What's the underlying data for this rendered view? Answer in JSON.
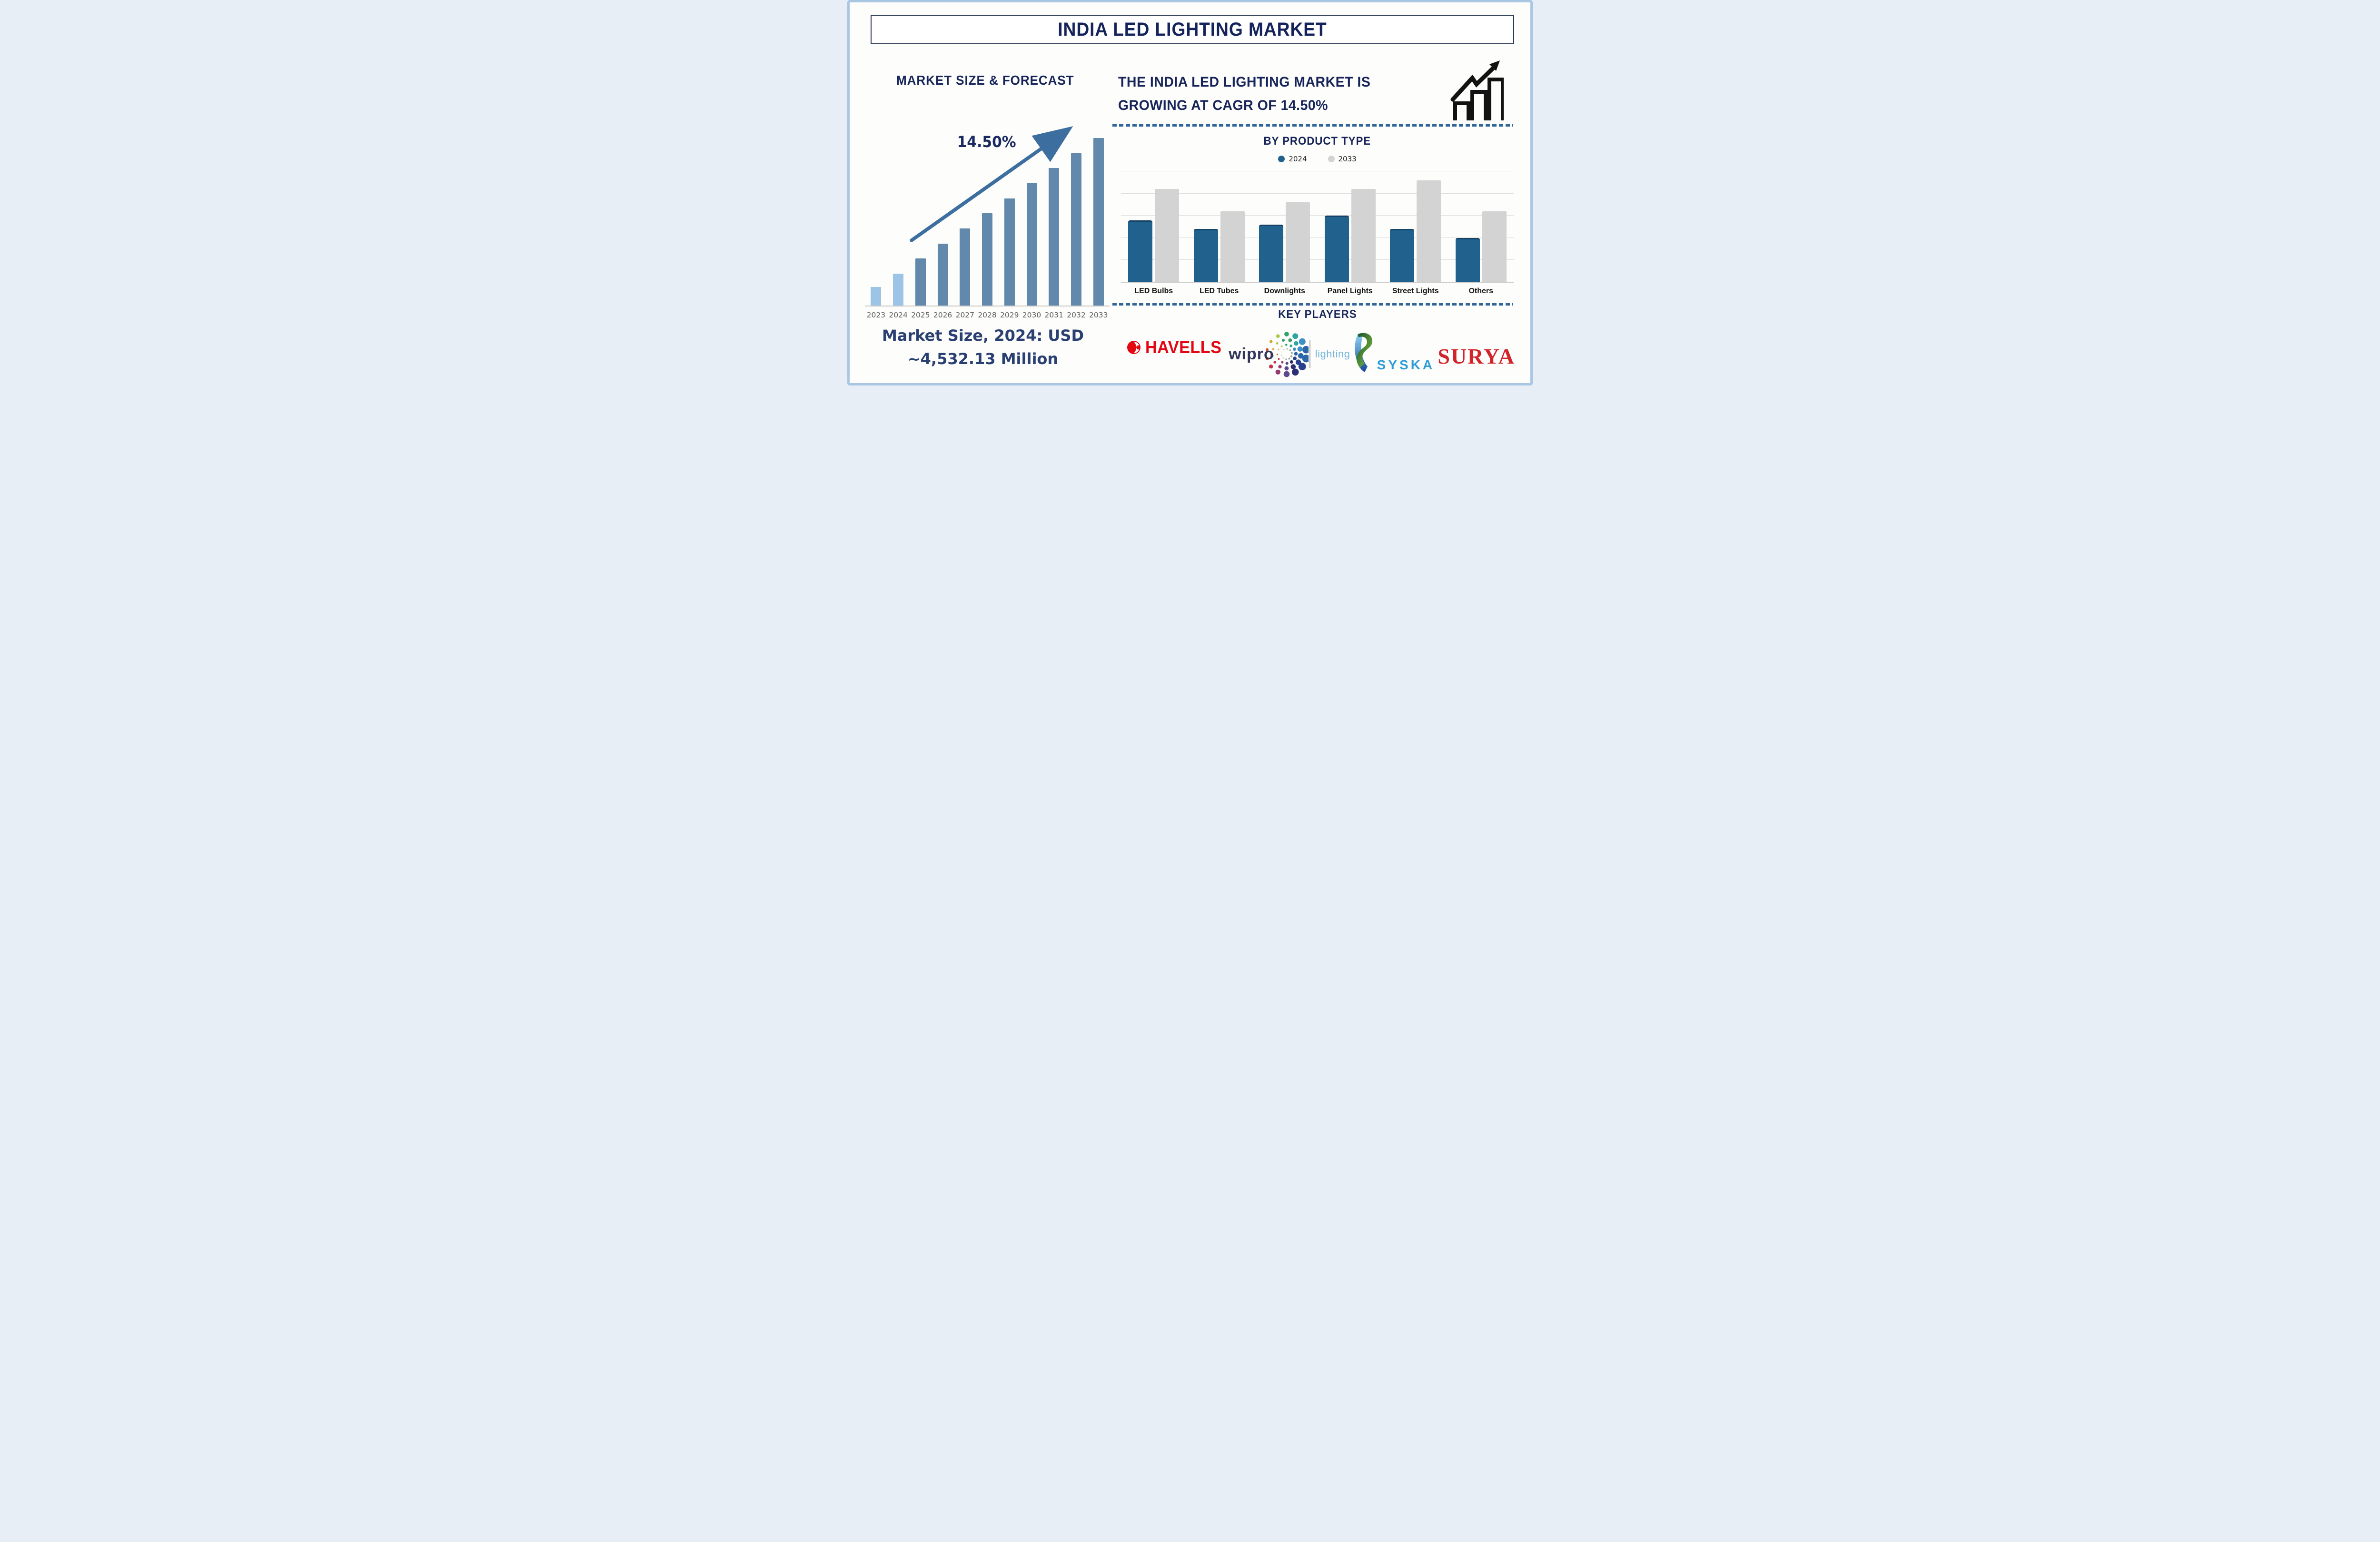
{
  "title": "INDIA LED LIGHTING MARKET",
  "left_panel": {
    "heading": "MARKET SIZE & FORECAST",
    "cagr_annotation": "14.50%",
    "market_size_line1": "Market Size, 2024: USD",
    "market_size_line2": "~4,532.13 Million"
  },
  "right_panel": {
    "heading_line1": "THE INDIA LED LIGHTING MARKET IS",
    "heading_line2": "GROWING AT CAGR OF 14.50%",
    "growth_icon": "growth-chart-icon"
  },
  "product_section": {
    "title": "BY PRODUCT TYPE",
    "legend": [
      {
        "label": "2024",
        "color": "#21618E"
      },
      {
        "label": "2033",
        "color": "#D3D3D3"
      }
    ]
  },
  "key_players_section": {
    "title": "KEY PLAYERS",
    "players": [
      {
        "name": "HAVELLS",
        "brand_color": "#E30613",
        "icon": "havells-flame-icon"
      },
      {
        "name": "wipro",
        "suffix": "lighting",
        "brand_color": "#32355C",
        "suffix_color": "#74B5DD",
        "icon": "wipro-dots-icon",
        "dot_palette": [
          "#35A06A",
          "#2AA7A2",
          "#3E8FC6",
          "#2A66A8",
          "#27418D",
          "#2D2F73",
          "#5C4A8C",
          "#973B72",
          "#C03148",
          "#D4542F",
          "#D8A33A",
          "#AFC94A"
        ]
      },
      {
        "name": "SYSKA",
        "brand_color": "#2E9CD6",
        "icon": "syska-ribbon-icon"
      },
      {
        "name": "SURYA",
        "brand_color": "#D2232A"
      }
    ]
  },
  "chart_data": [
    {
      "type": "bar",
      "title": "MARKET SIZE & FORECAST",
      "categories": [
        "2023",
        "2024",
        "2025",
        "2026",
        "2027",
        "2028",
        "2029",
        "2030",
        "2031",
        "2032",
        "2033"
      ],
      "values": [
        11,
        19,
        28,
        37,
        46,
        55,
        64,
        73,
        82,
        91,
        100
      ],
      "value_unit": "relative bar height, % of tallest bar (no numeric axis shown)",
      "known_points": {
        "2024_market_size_usd_million": 4532.13,
        "cagr_pct": 14.5
      },
      "bar_colors": {
        "historical": "#9DC3E6",
        "forecast": "#6289AB"
      },
      "historical_years": [
        "2023",
        "2024"
      ],
      "annotations": [
        "14.50%"
      ],
      "xlabel": "",
      "ylabel": "",
      "grid": false,
      "legend_position": "none"
    },
    {
      "type": "bar",
      "title": "BY PRODUCT TYPE",
      "categories": [
        "LED Bulbs",
        "LED Tubes",
        "Downlights",
        "Panel Lights",
        "Street Lights",
        "Others"
      ],
      "series": [
        {
          "name": "2024",
          "color": "#21618E",
          "values": [
            56,
            48,
            52,
            60,
            48,
            40
          ]
        },
        {
          "name": "2033",
          "color": "#D3D3D3",
          "values": [
            84,
            64,
            72,
            84,
            92,
            64
          ]
        }
      ],
      "value_unit": "relative bar height, % of plot height (no numeric axis shown; gridlines every 20%)",
      "xlabel": "",
      "ylabel": "",
      "grid": true,
      "gridline_step_pct": 20,
      "legend_position": "top"
    }
  ],
  "style_colors": {
    "frame_border": "#A9C7E3",
    "heading_navy": "#16245A",
    "footer_navy": "#2A3F72",
    "trend_arrow": "#3C6E9F",
    "dashed_separator": "#30669A",
    "axis_gray": "#C8C8C8",
    "year_label_gray": "#5B5B5B"
  }
}
